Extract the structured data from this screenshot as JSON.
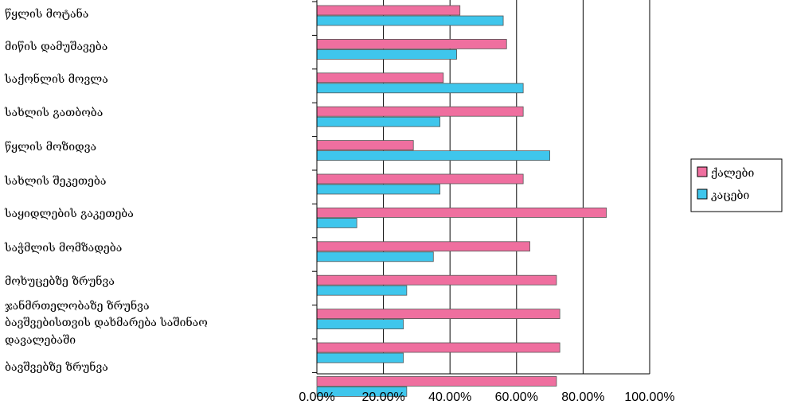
{
  "chart_data": {
    "type": "bar",
    "orientation": "horizontal",
    "categories": [
      "წყლის მოტანა",
      "მიწის დამუშავება",
      "საქონლის მოვლა",
      "სახლის გათბობა",
      "წყლის მოზიდვა",
      "სახლის შეკეთება",
      "საყიდლების გაკეთება",
      "საჭმლის მომზადება",
      "მოხუცებზე ზრუნვა",
      "ჯანმრთელობაზე ზრუნვა",
      "ბავშვებისთვის დახმარება საშინაო დავალებაში",
      "ბავშვებზე ზრუნვა"
    ],
    "series": [
      {
        "name": "ქალები",
        "color": "#ef6f9f",
        "values": [
          43,
          57,
          38,
          62,
          29,
          62,
          87,
          64,
          72,
          73,
          73,
          72
        ]
      },
      {
        "name": "კაცები",
        "color": "#3fc6ec",
        "values": [
          56,
          42,
          62,
          37,
          70,
          37,
          12,
          35,
          27,
          26,
          26,
          27
        ]
      }
    ],
    "xlim": [
      0,
      100
    ],
    "x_ticks": [
      "0.00%",
      "20.00%",
      "40.00%",
      "60.00%",
      "80.00%",
      "100.00%"
    ],
    "grid": true,
    "legend_position": "right"
  }
}
